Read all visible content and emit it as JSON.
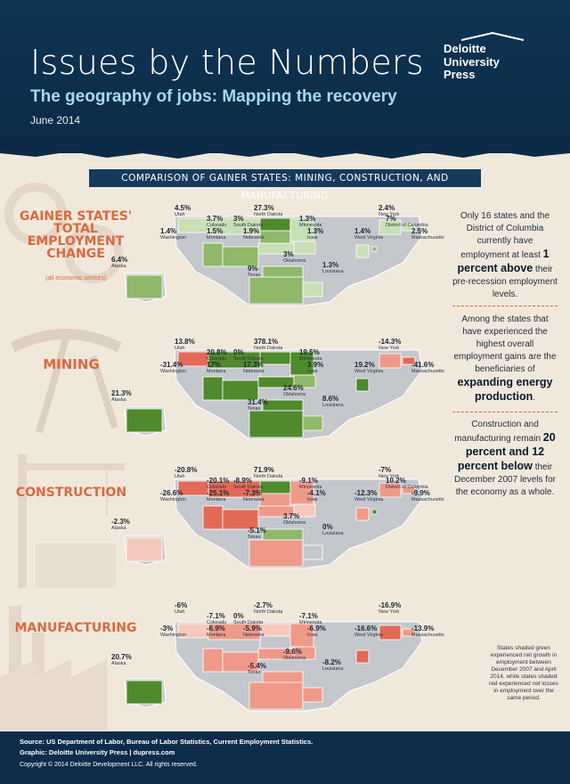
{
  "header": {
    "title": "Issues by the Numbers",
    "subtitle": "The geography of jobs: Mapping the recovery",
    "date": "June 2014",
    "logo_lines": [
      "Deloitte",
      "University",
      "Press"
    ]
  },
  "compare_title": "Comparison of gainer states: Mining, Construction, and Manufacturing",
  "colors": {
    "gain_dark": "#4f8a2c",
    "gain_mid": "#8fb86a",
    "gain_light": "#c9dfb6",
    "loss_dark": "#e26a56",
    "loss_mid": "#ef9a89",
    "loss_light": "#f6c8bd",
    "neutral": "#c4c7cc",
    "accent": "#d96a3f",
    "navy": "#0c2c4a"
  },
  "sections": [
    {
      "id": "total",
      "label_lines": [
        "Gainer States'",
        "Total",
        "Employment",
        "Change"
      ],
      "sub": "(all economic sectors)"
    },
    {
      "id": "mining",
      "label_lines": [
        "Mining"
      ],
      "sub": ""
    },
    {
      "id": "construction",
      "label_lines": [
        "Construction"
      ],
      "sub": ""
    },
    {
      "id": "manufacturing",
      "label_lines": [
        "Manufacturing"
      ],
      "sub": ""
    }
  ],
  "side_text": {
    "p1_pre": "Only 16 states and the District of Columbia currently have employment at least",
    "p1_bold": "1 percent above",
    "p1_post": "their pre-recession employment levels.",
    "p2_pre": "Among the states that have experienced the highest overall employment gains are the beneficiaries of",
    "p2_bold": "expanding energy production",
    "p2_post": ".",
    "p3_pre": "Construction and manufacturing remain",
    "p3_bold": "20 percent and 12 percent below",
    "p3_post": "their December 2007 levels for the economy as a whole."
  },
  "legend_note": "States shaded green experienced net growth in employment between December 2007 and April 2014, while states shaded red experienced net losses in employment over the same period.",
  "chart_data": [
    {
      "type": "map",
      "title": "Gainer states' total employment change",
      "unit": "percent",
      "values": [
        {
          "state": "Utah",
          "value": 4.5
        },
        {
          "state": "North Dakota",
          "value": 27.3
        },
        {
          "state": "New York",
          "value": 2.4
        },
        {
          "state": "Colorado",
          "value": 3.7
        },
        {
          "state": "South Dakota",
          "value": 3
        },
        {
          "state": "Minnesota",
          "value": 1.3
        },
        {
          "state": "District of Columbia",
          "value": 7
        },
        {
          "state": "Washington",
          "value": 1.4
        },
        {
          "state": "Montana",
          "value": 1.5
        },
        {
          "state": "Nebraska",
          "value": 1.9
        },
        {
          "state": "Iowa",
          "value": 1.3
        },
        {
          "state": "West Virginia",
          "value": 1.4
        },
        {
          "state": "Massachusetts",
          "value": 2.5
        },
        {
          "state": "Alaska",
          "value": 6.4
        },
        {
          "state": "Oklahoma",
          "value": 3
        },
        {
          "state": "Texas",
          "value": 9
        },
        {
          "state": "Louisiana",
          "value": 1.3
        }
      ]
    },
    {
      "type": "map",
      "title": "Mining",
      "unit": "percent",
      "values": [
        {
          "state": "Utah",
          "value": 13.8
        },
        {
          "state": "North Dakota",
          "value": 378.1
        },
        {
          "state": "New York",
          "value": -14.3
        },
        {
          "state": "Colorado",
          "value": 20.8
        },
        {
          "state": "South Dakota",
          "value": 0
        },
        {
          "state": "Minnesota",
          "value": 19.5
        },
        {
          "state": "Washington",
          "value": -31.4
        },
        {
          "state": "Montana",
          "value": 17
        },
        {
          "state": "Nebraska",
          "value": 17.3
        },
        {
          "state": "Iowa",
          "value": 3.9
        },
        {
          "state": "West Virginia",
          "value": 19.2
        },
        {
          "state": "Massachusetts",
          "value": -41.6
        },
        {
          "state": "Alaska",
          "value": 21.3
        },
        {
          "state": "Oklahoma",
          "value": 24.6
        },
        {
          "state": "Texas",
          "value": 31.4
        },
        {
          "state": "Louisiana",
          "value": 8.6
        }
      ]
    },
    {
      "type": "map",
      "title": "Construction",
      "unit": "percent",
      "values": [
        {
          "state": "Utah",
          "value": -20.8
        },
        {
          "state": "North Dakota",
          "value": 71.9
        },
        {
          "state": "New York",
          "value": -7
        },
        {
          "state": "Colorado",
          "value": -20.1
        },
        {
          "state": "South Dakota",
          "value": -8.9
        },
        {
          "state": "Minnesota",
          "value": -9.1
        },
        {
          "state": "District of Columbia",
          "value": 10.2
        },
        {
          "state": "Washington",
          "value": -26.6
        },
        {
          "state": "Montana",
          "value": -25.1
        },
        {
          "state": "Nebraska",
          "value": -7.3
        },
        {
          "state": "Iowa",
          "value": -4.1
        },
        {
          "state": "West Virginia",
          "value": -12.3
        },
        {
          "state": "Massachusetts",
          "value": -9.9
        },
        {
          "state": "Alaska",
          "value": -2.3
        },
        {
          "state": "Oklahoma",
          "value": 3.7
        },
        {
          "state": "Texas",
          "value": -5.1
        },
        {
          "state": "Louisiana",
          "value": 0
        }
      ]
    },
    {
      "type": "map",
      "title": "Manufacturing",
      "unit": "percent",
      "values": [
        {
          "state": "Utah",
          "value": -6
        },
        {
          "state": "North Dakota",
          "value": -2.7
        },
        {
          "state": "New York",
          "value": -16.9
        },
        {
          "state": "Colorado",
          "value": -7.1
        },
        {
          "state": "South Dakota",
          "value": 0
        },
        {
          "state": "Minnesota",
          "value": -7.1
        },
        {
          "state": "Washington",
          "value": -3
        },
        {
          "state": "Montana",
          "value": -6.9
        },
        {
          "state": "Nebraska",
          "value": -5.9
        },
        {
          "state": "Iowa",
          "value": -6.9
        },
        {
          "state": "West Virginia",
          "value": -16.6
        },
        {
          "state": "Massachusetts",
          "value": -13.9
        },
        {
          "state": "Alaska",
          "value": 20.7
        },
        {
          "state": "Oklahoma",
          "value": -9.6
        },
        {
          "state": "Texas",
          "value": -5.4
        },
        {
          "state": "Louisiana",
          "value": -8.2
        }
      ]
    }
  ],
  "value_labels": [
    [
      "4.5%",
      "27.3%",
      "2.4%",
      "3.7%",
      "3%",
      "1.3%",
      "7%",
      "1.4%",
      "1.5%",
      "1.9%",
      "1.3%",
      "1.4%",
      "2.5%",
      "6.4%",
      "3%",
      "9%",
      "1.3%"
    ],
    [
      "13.8%",
      "378.1%",
      "-14.3%",
      "20.8%",
      "0%",
      "19.5%",
      "-31.4%",
      "17%",
      "17.3%",
      "3.9%",
      "19.2%",
      "-41.6%",
      "21.3%",
      "24.6%",
      "31.4%",
      "8.6%"
    ],
    [
      "-20.8%",
      "71.9%",
      "-7%",
      "-20.1%",
      "-8.9%",
      "-9.1%",
      "10.2%",
      "-26.6%",
      "-25.1%",
      "-7.3%",
      "-4.1%",
      "-12.3%",
      "-9.9%",
      "-2.3%",
      "3.7%",
      "-5.1%",
      "0%"
    ],
    [
      "-6%",
      "-2.7%",
      "-16.9%",
      "-7.1%",
      "0%",
      "-7.1%",
      "-3%",
      "-6.9%",
      "-5.9%",
      "-6.9%",
      "-16.6%",
      "-13.9%",
      "20.7%",
      "-9.6%",
      "-5.4%",
      "-8.2%"
    ]
  ],
  "footer": {
    "source": "Source: US Department of Labor, Bureau of Labor Statistics, Current Employment Statistics.",
    "graphic": "Graphic: Deloitte University Press | dupress.com",
    "copyright": "Copyright © 2014 Deloitte Development LLC. All rights reserved."
  }
}
